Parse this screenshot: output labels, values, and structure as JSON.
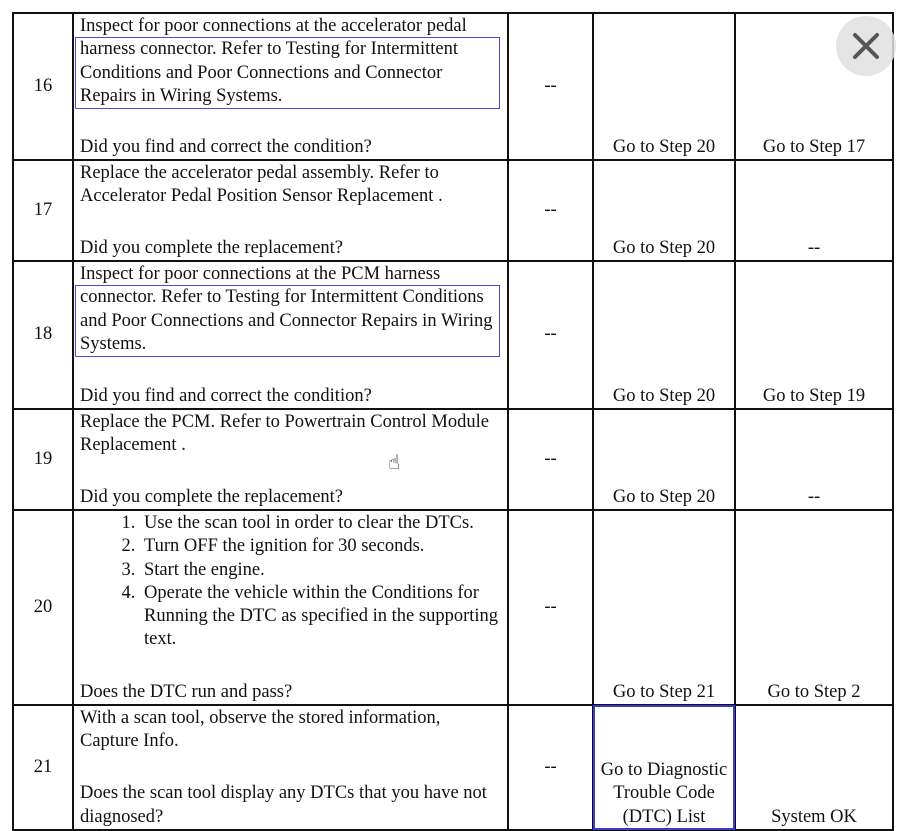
{
  "rows": [
    {
      "step": "16",
      "text_before": "Inspect for poor connections at the accelerator pedal",
      "link": "harness connector. Refer to Testing for Intermittent Conditions and Poor Connections and Connector Repairs in Wiring Systems.",
      "question": "Did you find and correct the condition?",
      "value": "--",
      "yes": "Go to Step 20",
      "no": "Go to Step 17"
    },
    {
      "step": "17",
      "text": "Replace the accelerator pedal assembly. Refer to Accelerator Pedal Position Sensor Replacement .",
      "question": "Did you complete the replacement?",
      "value": "--",
      "yes": "Go to Step 20",
      "no": "--"
    },
    {
      "step": "18",
      "text_before": "Inspect for poor connections at the PCM harness",
      "link": "connector. Refer to Testing for Intermittent Conditions and Poor Connections and Connector Repairs in Wiring Systems.",
      "question": "Did you find and correct the condition?",
      "value": "--",
      "yes": "Go to Step 20",
      "no": "Go to Step 19"
    },
    {
      "step": "19",
      "text": "Replace the PCM. Refer to Powertrain Control Module Replacement .",
      "question": "Did you complete the replacement?",
      "value": "--",
      "yes": "Go to Step 20",
      "no": "--"
    },
    {
      "step": "20",
      "list": [
        "Use the scan tool in order to clear the DTCs.",
        "Turn OFF the ignition for 30 seconds.",
        "Start the engine.",
        "Operate the vehicle within the Conditions for Running the DTC as specified in the supporting text."
      ],
      "question": "Does the DTC run and pass?",
      "value": "--",
      "yes": "Go to Step 21",
      "no": "Go to Step 2"
    },
    {
      "step": "21",
      "text": "With a scan tool, observe the stored information, Capture Info.",
      "question": "Does the scan tool display any DTCs that you have not diagnosed?",
      "value": "--",
      "yes": "Go to Diagnostic Trouble Code (DTC) List",
      "no": "System OK"
    }
  ],
  "icons": {
    "close": "close-icon",
    "cursor": "hand-pointer-icon"
  }
}
